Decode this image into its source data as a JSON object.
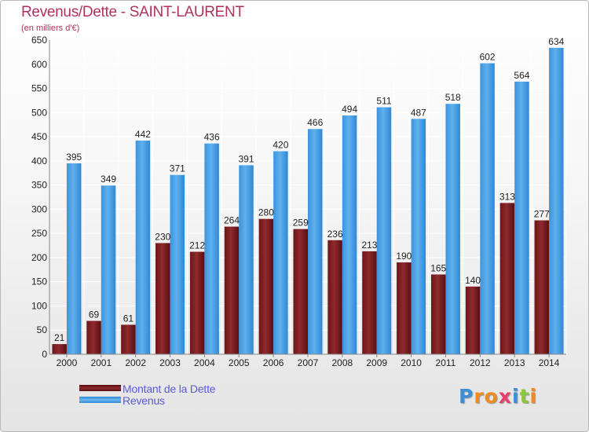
{
  "title": "Revenus/Dette - SAINT-LAURENT",
  "subtitle": "(en milliers d'€)",
  "colors": {
    "title": "#b0325f",
    "debt": "#7a1b1f",
    "revenue": "#4fa3e6",
    "legend_text": "#5b5bd6",
    "grid": "#ffffff",
    "axis": "#888888"
  },
  "legend": {
    "debt_label": "Montant de la Dette",
    "revenue_label": "Revenus"
  },
  "logo": {
    "letters": [
      "P",
      "r",
      "o",
      "x",
      "i",
      "t",
      "i"
    ],
    "colors": [
      "#3b8fd9",
      "#f08c1e",
      "#f08c1e",
      "#e83e6c",
      "#3b8fd9",
      "#8cc63f",
      "#f08c1e"
    ]
  },
  "chart_data": {
    "type": "bar",
    "title": "Revenus/Dette - SAINT-LAURENT",
    "subtitle": "(en milliers d'€)",
    "categories": [
      "2000",
      "2001",
      "2002",
      "2003",
      "2004",
      "2005",
      "2006",
      "2007",
      "2008",
      "2009",
      "2010",
      "2011",
      "2012",
      "2013",
      "2014"
    ],
    "series": [
      {
        "name": "Montant de la Dette",
        "values": [
          21,
          69,
          61,
          230,
          212,
          264,
          280,
          259,
          236,
          213,
          190,
          165,
          140,
          313,
          277
        ]
      },
      {
        "name": "Revenus",
        "values": [
          395,
          349,
          442,
          371,
          436,
          391,
          420,
          466,
          494,
          511,
          487,
          518,
          602,
          564,
          634
        ]
      }
    ],
    "ylim": [
      0,
      650
    ],
    "yticks": [
      0,
      50,
      100,
      150,
      200,
      250,
      300,
      350,
      400,
      450,
      500,
      550,
      600,
      650
    ],
    "grid": true,
    "legend_position": "bottom-left"
  }
}
